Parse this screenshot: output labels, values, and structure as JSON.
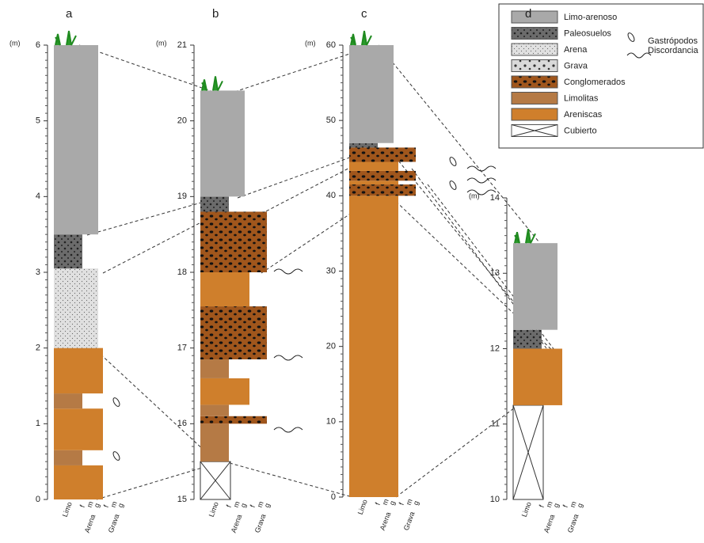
{
  "columns": [
    {
      "label": "a",
      "unit": "(m)",
      "ylim": [
        0,
        6
      ],
      "ticks": [
        0,
        1,
        2,
        3,
        4,
        5,
        6
      ],
      "layers": [
        {
          "bottom": 0,
          "top": 0.45,
          "lithology": "Areniscas"
        },
        {
          "bottom": 0.45,
          "top": 0.65,
          "lithology": "Limolitas"
        },
        {
          "bottom": 0.65,
          "top": 1.2,
          "lithology": "Areniscas"
        },
        {
          "bottom": 1.2,
          "top": 1.4,
          "lithology": "Limolitas"
        },
        {
          "bottom": 1.4,
          "top": 2.0,
          "lithology": "Areniscas"
        },
        {
          "bottom": 2.0,
          "top": 3.05,
          "lithology": "Arena"
        },
        {
          "bottom": 3.05,
          "top": 3.5,
          "lithology": "Paleosuelos"
        },
        {
          "bottom": 3.5,
          "top": 6.0,
          "lithology": "Limo-arenoso"
        }
      ]
    },
    {
      "label": "b",
      "unit": "(m)",
      "ylim": [
        15,
        21
      ],
      "ticks": [
        15,
        16,
        17,
        18,
        19,
        20,
        21
      ],
      "layers": [
        {
          "bottom": 15,
          "top": 15.5,
          "lithology": "Cubierto"
        },
        {
          "bottom": 15.5,
          "top": 16.0,
          "lithology": "Limolitas"
        },
        {
          "bottom": 16.0,
          "top": 16.1,
          "lithology": "Conglomerados"
        },
        {
          "bottom": 16.1,
          "top": 16.25,
          "lithology": "Limolitas"
        },
        {
          "bottom": 16.25,
          "top": 16.6,
          "lithology": "Areniscas"
        },
        {
          "bottom": 16.6,
          "top": 16.85,
          "lithology": "Limolitas"
        },
        {
          "bottom": 16.85,
          "top": 17.55,
          "lithology": "Conglomerados"
        },
        {
          "bottom": 17.55,
          "top": 18.0,
          "lithology": "Areniscas"
        },
        {
          "bottom": 18.0,
          "top": 18.8,
          "lithology": "Conglomerados"
        },
        {
          "bottom": 18.8,
          "top": 19.0,
          "lithology": "Paleosuelos"
        },
        {
          "bottom": 19.0,
          "top": 20.4,
          "lithology": "Limo-arenoso"
        }
      ]
    },
    {
      "label": "c",
      "unit": "(m)",
      "ylim": [
        0,
        60
      ],
      "ticks": [
        0,
        10,
        20,
        30,
        40,
        50,
        60
      ],
      "layers": [
        {
          "bottom": 0,
          "top": 40,
          "lithology": "Areniscas"
        },
        {
          "bottom": 40,
          "top": 41.5,
          "lithology": "Conglomerados"
        },
        {
          "bottom": 41.5,
          "top": 42,
          "lithology": "Areniscas"
        },
        {
          "bottom": 42,
          "top": 43.3,
          "lithology": "Conglomerados"
        },
        {
          "bottom": 43.3,
          "top": 44.5,
          "lithology": "Areniscas"
        },
        {
          "bottom": 44.5,
          "top": 46.4,
          "lithology": "Conglomerados"
        },
        {
          "bottom": 46.4,
          "top": 47,
          "lithology": "Paleosuelos"
        },
        {
          "bottom": 47,
          "top": 60,
          "lithology": "Limo-arenoso"
        }
      ]
    },
    {
      "label": "d",
      "unit": "(m)",
      "ylim": [
        10,
        14
      ],
      "ticks": [
        10,
        11,
        12,
        13,
        14
      ],
      "layers": [
        {
          "bottom": 10,
          "top": 11.25,
          "lithology": "Cubierto"
        },
        {
          "bottom": 11.25,
          "top": 12.0,
          "lithology": "Areniscas"
        },
        {
          "bottom": 12.0,
          "top": 12.25,
          "lithology": "Paleosuelos"
        },
        {
          "bottom": 12.25,
          "top": 13.4,
          "lithology": "Limo-arenoso"
        }
      ]
    }
  ],
  "legend": [
    "Limo-arenoso",
    "Paleosuelos",
    "Arena",
    "Grava",
    "Conglomerados",
    "Limolitas",
    "Areniscas",
    "Cubierto"
  ],
  "symbols": [
    "Gastrópodos",
    "Discordancia"
  ],
  "grain_scale": {
    "fine": "Limo",
    "sizes": [
      "f",
      "m",
      "g"
    ],
    "groups": [
      "Arena",
      "Grava"
    ]
  }
}
